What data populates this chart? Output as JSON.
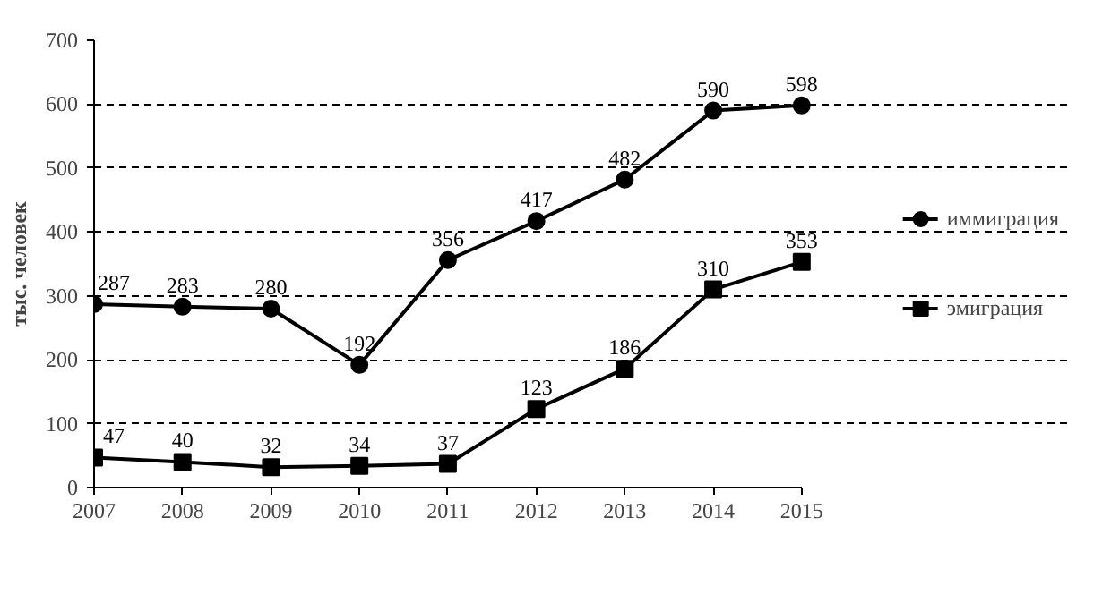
{
  "chart_data": {
    "type": "line",
    "ylabel": "тыс. человек",
    "categories": [
      "2007",
      "2008",
      "2009",
      "2010",
      "2011",
      "2012",
      "2013",
      "2014",
      "2015"
    ],
    "series": [
      {
        "name": "иммиграция",
        "color": "#000000",
        "marker": "circle",
        "values": [
          287,
          283,
          280,
          192,
          356,
          417,
          482,
          590,
          598
        ]
      },
      {
        "name": "эмиграция",
        "color": "#000000",
        "marker": "square",
        "values": [
          47,
          40,
          32,
          34,
          37,
          123,
          186,
          310,
          353
        ]
      }
    ],
    "ylim": [
      0,
      700
    ],
    "yticks": [
      0,
      100,
      200,
      300,
      400,
      500,
      600,
      700
    ],
    "grid": "y",
    "legend": "right",
    "data_labels": true,
    "line_style": "solid"
  }
}
